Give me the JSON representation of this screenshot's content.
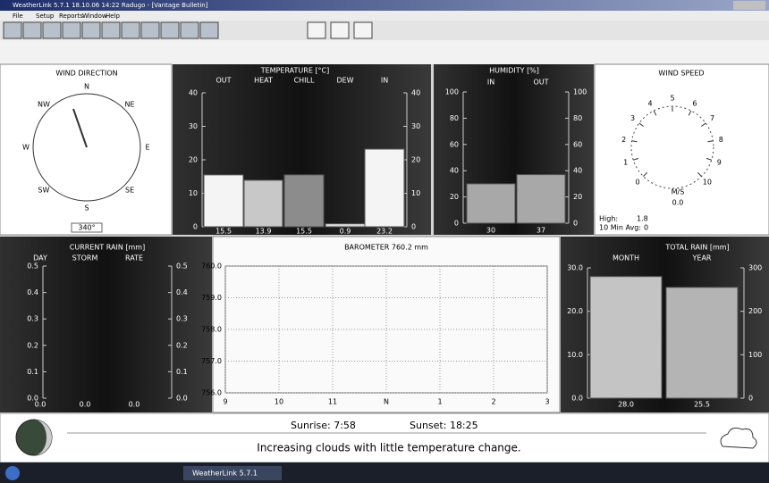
{
  "window": {
    "title": "WeatherLink 5.7.1 18.10.06 14:22 Radugo - [Vantage Bulletin]",
    "menu": [
      "File",
      "Setup",
      "Reports",
      "Window",
      "Help"
    ]
  },
  "wind_direction": {
    "title": "WIND DIRECTION",
    "points": [
      "N",
      "NE",
      "E",
      "SE",
      "S",
      "SW",
      "W",
      "NW"
    ],
    "reading": "340°"
  },
  "temperature": {
    "title": "TEMPERATURE [°C]",
    "categories": [
      "OUT",
      "HEAT",
      "CHILL",
      "DEW",
      "IN"
    ],
    "values": [
      15.5,
      13.9,
      15.5,
      0.9,
      23.2
    ],
    "colors": [
      "#f4f4f4",
      "#c8c8c8",
      "#8c8c8c",
      "#dcdcdc",
      "#f4f4f4"
    ],
    "ylim": [
      0,
      40
    ],
    "yticks": [
      0,
      10,
      20,
      30,
      40
    ]
  },
  "humidity": {
    "title": "HUMIDITY [%]",
    "categories": [
      "IN",
      "OUT"
    ],
    "values": [
      30,
      37
    ],
    "colors": [
      "#a8a8a8",
      "#a8a8a8"
    ],
    "ylim": [
      0,
      100
    ],
    "yticks": [
      0,
      20,
      40,
      60,
      80,
      100
    ]
  },
  "wind_speed": {
    "title": "WIND SPEED",
    "scale_ticks": [
      0,
      1,
      2,
      3,
      4,
      5,
      6,
      7,
      8,
      9,
      10
    ],
    "units": "M/S",
    "reading": "0.0",
    "high_label": "High:",
    "high": "1.8",
    "avg_label": "10 Min Avg:",
    "avg": "0"
  },
  "current_rain": {
    "title": "CURRENT RAIN [mm]",
    "categories": [
      "DAY",
      "STORM",
      "RATE"
    ],
    "values": [
      0,
      0,
      0
    ],
    "value_labels": [
      "0.0",
      "0.0",
      "0.0"
    ],
    "colors": [
      "#cccccc",
      "#cccccc",
      "#cccccc"
    ],
    "ylim": [
      0,
      0.5
    ],
    "yticks": [
      {
        "value": 0,
        "label": "0.0"
      },
      0.1,
      0.2,
      0.3,
      0.4,
      0.5
    ]
  },
  "barometer": {
    "title": "BAROMETER 760.2 mm",
    "categories": [
      "9",
      "10",
      "11",
      "N",
      "1",
      "2",
      "3"
    ],
    "ylim": [
      756,
      760
    ],
    "yticks": [
      {
        "value": 756,
        "label": "756.0"
      },
      {
        "value": 757,
        "label": "757.0"
      },
      {
        "value": 758,
        "label": "758.0"
      },
      {
        "value": 759,
        "label": "759.0"
      },
      {
        "value": 760,
        "label": "760.0"
      }
    ]
  },
  "total_rain": {
    "title": "TOTAL RAIN [mm]",
    "categories": [
      "MONTH",
      "YEAR"
    ],
    "values": [
      28,
      25.5
    ],
    "value_labels": [
      "28.0",
      "25.5"
    ],
    "colors": [
      "#c4c4c4",
      "#b4b4b4"
    ],
    "ylim": [
      0,
      30
    ],
    "yticks": [
      {
        "value": 0,
        "label": "0.0"
      },
      {
        "value": 10,
        "label": "10.0"
      },
      {
        "value": 20,
        "label": "20.0"
      },
      {
        "value": 30,
        "label": "30.0"
      }
    ],
    "y2lim": [
      0,
      300
    ],
    "y2ticks": [
      0,
      100,
      200,
      300
    ]
  },
  "status": {
    "sunrise": "Sunrise:  7:58",
    "sunset": "Sunset:  18:25",
    "forecast": "Increasing clouds with little temperature change."
  },
  "taskbar": {
    "task": "WeatherLink 5.7.1"
  }
}
